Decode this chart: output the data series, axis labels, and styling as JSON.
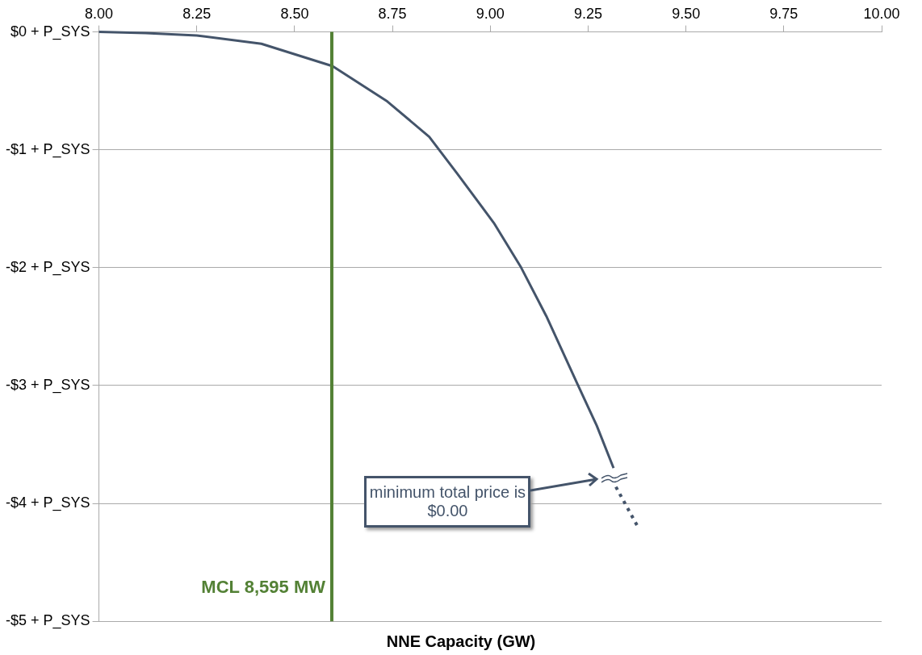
{
  "chart_data": {
    "type": "line",
    "xlabel": "NNE Capacity (GW)",
    "xlim": [
      8,
      10
    ],
    "xticks": [
      {
        "value": 8,
        "label": "8.00"
      },
      {
        "value": 8.25,
        "label": "8.25"
      },
      {
        "value": 8.5,
        "label": "8.50"
      },
      {
        "value": 8.75,
        "label": "8.75"
      },
      {
        "value": 9,
        "label": "9.00"
      },
      {
        "value": 9.25,
        "label": "9.25"
      },
      {
        "value": 9.5,
        "label": "9.50"
      },
      {
        "value": 9.75,
        "label": "9.75"
      },
      {
        "value": 10,
        "label": "10.00"
      }
    ],
    "ylim": [
      -5,
      0
    ],
    "yticks": [
      {
        "value": 0,
        "label": "$0 + P_SYS"
      },
      {
        "value": -1,
        "label": "-$1 + P_SYS"
      },
      {
        "value": -2,
        "label": "-$2 + P_SYS"
      },
      {
        "value": -3,
        "label": "-$3 + P_SYS"
      },
      {
        "value": -4,
        "label": "-$4 + P_SYS"
      },
      {
        "value": -5,
        "label": "-$5 + P_SYS"
      }
    ],
    "grid": "y",
    "legend": false,
    "marker": "none",
    "series": [
      {
        "color": "#44546a",
        "line_style": "solid",
        "x": [
          8,
          8.12,
          8.25,
          8.415,
          8.597,
          8.737,
          8.844,
          8.915,
          8.951,
          9.009,
          9.079,
          9.143,
          9.223,
          9.272,
          9.315
        ],
        "values": [
          0,
          -0.01,
          -0.03,
          -0.1,
          -0.29,
          -0.59,
          -0.89,
          -1.2,
          -1.36,
          -1.62,
          -2,
          -2.41,
          -2.99,
          -3.34,
          -3.7
        ]
      },
      {
        "color": "#44546a",
        "line_style": "dotted",
        "x": [
          9.321,
          9.379
        ],
        "values": [
          -3.86,
          -4.21
        ]
      }
    ],
    "ref_lines": [
      {
        "axis": "x",
        "value": 8.595,
        "label": "MCL 8,595 MW",
        "color": "#538135"
      }
    ],
    "annotations": [
      "minimum total price is $0.00"
    ]
  }
}
